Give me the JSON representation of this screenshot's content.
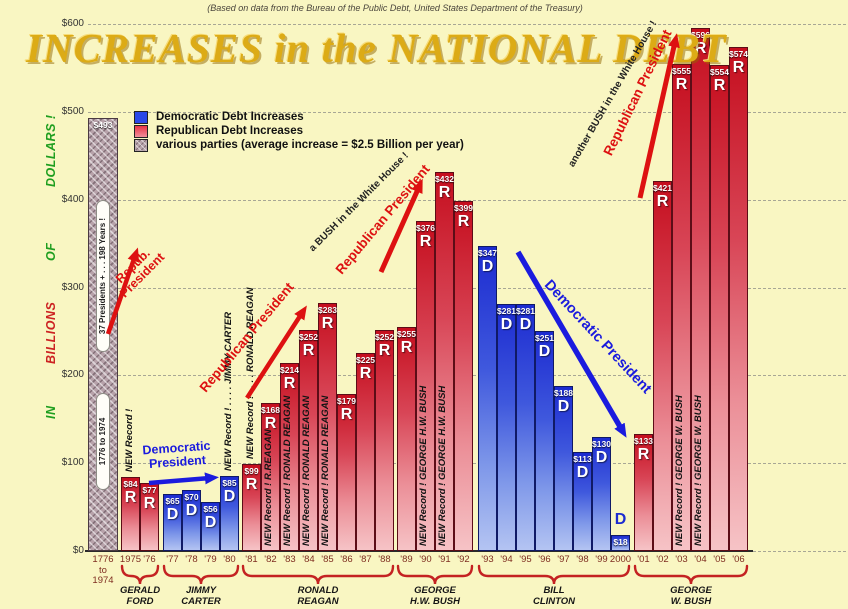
{
  "page": {
    "subtitle": "(Based on data from the Bureau of the Public Debt, United States Department of the Treasury)",
    "title": "INCREASES in the NATIONAL DEBT"
  },
  "legend": {
    "items": [
      {
        "label": "Democratic Debt Increases",
        "swatch_color": "#2a48e8"
      },
      {
        "label": "Republican Debt Increases",
        "swatch_color": "#e83346"
      },
      {
        "label": "various parties (average increase = $2.5 Billion per year)",
        "swatch_color": "hatch"
      }
    ]
  },
  "annotations": {
    "ford": {
      "line1": "Repub.",
      "line2": "President",
      "color": "#dd1111"
    },
    "carter": {
      "line1": "Democratic",
      "line2": "President",
      "color": "#1b1bde"
    },
    "reagan": {
      "text": "Republican President",
      "color": "#dd1111"
    },
    "bush41": {
      "black": "a BUSH in the White House !",
      "red": "Republican President"
    },
    "bush43": {
      "black": "another BUSH in the White House !",
      "red": "Republican President"
    },
    "clinton": {
      "text": "Democratic President",
      "color": "#1b1bde"
    }
  },
  "chart_data": {
    "type": "bar",
    "title": "INCREASES in the NATIONAL DEBT",
    "subtitle": "(Based on data from the Bureau of the Public Debt, United States Department of the Treasury)",
    "ylabel": "IN BILLIONS OF DOLLARS !",
    "unit": "billions of US dollars",
    "ylim": [
      0,
      600
    ],
    "grid": "horizontal dashed",
    "yticks": [
      {
        "label": "$600",
        "value": 600
      },
      {
        "label": "$500",
        "value": 500
      },
      {
        "label": "$400",
        "value": 400
      },
      {
        "label": "$300",
        "value": 300
      },
      {
        "label": "$200",
        "value": 200
      },
      {
        "label": "$100",
        "value": 100
      },
      {
        "label": "$0",
        "value": 0
      }
    ],
    "ylabel_words": [
      {
        "text": "DOLLARS !",
        "color": "#1f9e1f"
      },
      {
        "text": "OF",
        "color": "#1f9e1f"
      },
      {
        "text": "BILLIONS",
        "color": "#cc2222"
      },
      {
        "text": "IN",
        "color": "#1f9e1f"
      }
    ],
    "bars": [
      {
        "tick": "1776-1974",
        "tick_lines": [
          "1776",
          "to",
          "1974"
        ],
        "label": "$493",
        "value": 493,
        "party": "various",
        "pills": [
          "37 Presidents +  . . .  198 Years !",
          "1776  to  1974"
        ]
      },
      {
        "tick": "1975",
        "label": "$84",
        "value": 84,
        "party": "R",
        "letter": "R",
        "gap": 3,
        "record": "NEW Record !",
        "record_pos": "above"
      },
      {
        "tick": "'76",
        "label": "$77",
        "value": 77,
        "party": "R",
        "letter": "R"
      },
      {
        "tick": "'77",
        "label": "$65",
        "value": 65,
        "party": "D",
        "letter": "D",
        "gap": 4
      },
      {
        "tick": "'78",
        "label": "$70",
        "value": 70,
        "party": "D",
        "letter": "D"
      },
      {
        "tick": "'79",
        "label": "$56",
        "value": 56,
        "party": "D",
        "letter": "D"
      },
      {
        "tick": "'80",
        "label": "$85",
        "value": 85,
        "party": "D",
        "letter": "D",
        "record": "NEW Record ! . . . .  JIMMY CARTER",
        "record_pos": "above"
      },
      {
        "tick": "'81",
        "label": "$99",
        "value": 99,
        "party": "R",
        "letter": "R",
        "gap": 3,
        "record": "NEW Record ! . . . .  RONALD REAGAN",
        "record_pos": "above"
      },
      {
        "tick": "'82",
        "label": "$168",
        "value": 168,
        "party": "R",
        "letter": "R",
        "record": "NEW Record ! R.REAGAN",
        "record_pos": "on"
      },
      {
        "tick": "'83",
        "label": "$214",
        "value": 214,
        "party": "R",
        "letter": "R",
        "record": "NEW Record ! RONALD REAGAN",
        "record_pos": "on"
      },
      {
        "tick": "'84",
        "label": "$252",
        "value": 252,
        "party": "R",
        "letter": "R",
        "record": "NEW Record ! RONALD REAGAN",
        "record_pos": "on"
      },
      {
        "tick": "'85",
        "label": "$283",
        "value": 283,
        "party": "R",
        "letter": "R",
        "record": "NEW Record ! RONALD REAGAN",
        "record_pos": "on"
      },
      {
        "tick": "'86",
        "label": "$179",
        "value": 179,
        "party": "R",
        "letter": "R"
      },
      {
        "tick": "'87",
        "label": "$225",
        "value": 225,
        "party": "R",
        "letter": "R"
      },
      {
        "tick": "'88",
        "label": "$252",
        "value": 252,
        "party": "R",
        "letter": "R"
      },
      {
        "tick": "'89",
        "label": "$255",
        "value": 255,
        "party": "R",
        "letter": "R",
        "gap": 3
      },
      {
        "tick": "'90",
        "label": "$376",
        "value": 376,
        "party": "R",
        "letter": "R",
        "record": "NEW Record ! GEORGE H.W. BUSH",
        "record_pos": "on"
      },
      {
        "tick": "'91",
        "label": "$432",
        "value": 432,
        "party": "R",
        "letter": "R",
        "record": "NEW Record ! GEORGE H.W. BUSH",
        "record_pos": "on"
      },
      {
        "tick": "'92",
        "label": "$399",
        "value": 399,
        "party": "R",
        "letter": "R"
      },
      {
        "tick": "'93",
        "label": "$347",
        "value": 347,
        "party": "D",
        "letter": "D",
        "gap": 5
      },
      {
        "tick": "'94",
        "label": "$281",
        "value": 281,
        "party": "D",
        "letter": "D"
      },
      {
        "tick": "'95",
        "label": "$281",
        "value": 281,
        "party": "D",
        "letter": "D"
      },
      {
        "tick": "'96",
        "label": "$251",
        "value": 251,
        "party": "D",
        "letter": "D"
      },
      {
        "tick": "'97",
        "label": "$188",
        "value": 188,
        "party": "D",
        "letter": "D"
      },
      {
        "tick": "'98",
        "label": "$113",
        "value": 113,
        "party": "D",
        "letter": "D"
      },
      {
        "tick": "'99",
        "label": "$130",
        "value": 130,
        "party": "D",
        "letter": "D"
      },
      {
        "tick": "2000",
        "label": "$18",
        "value": 18,
        "party": "D",
        "letter": "D",
        "letter_outside": true
      },
      {
        "tick": "'01",
        "label": "$133",
        "value": 133,
        "party": "R",
        "letter": "R",
        "gap": 4
      },
      {
        "tick": "'02",
        "label": "$421",
        "value": 421,
        "party": "R",
        "letter": "R"
      },
      {
        "tick": "'03",
        "label": "$555",
        "value": 555,
        "party": "R",
        "letter": "R",
        "record": "NEW Record ! GEORGE W. BUSH",
        "record_pos": "on"
      },
      {
        "tick": "'04",
        "label": "$596",
        "value": 596,
        "party": "R",
        "letter": "R",
        "record": "NEW Record ! GEORGE W. BUSH",
        "record_pos": "on"
      },
      {
        "tick": "'05",
        "label": "$554",
        "value": 554,
        "party": "R",
        "letter": "R"
      },
      {
        "tick": "'06",
        "label": "$574",
        "value": 574,
        "party": "R",
        "letter": "R"
      }
    ],
    "groups": [
      {
        "from": 1,
        "to": 2,
        "name": "GERALD FORD",
        "lines": [
          "GERALD",
          "FORD"
        ]
      },
      {
        "from": 3,
        "to": 6,
        "name": "JIMMY CARTER",
        "lines": [
          "JIMMY",
          "CARTER"
        ]
      },
      {
        "from": 7,
        "to": 14,
        "name": "RONALD REAGAN",
        "lines": [
          "RONALD",
          "REAGAN"
        ]
      },
      {
        "from": 15,
        "to": 18,
        "name": "GEORGE H.W. BUSH",
        "lines": [
          "GEORGE",
          "H.W. BUSH"
        ]
      },
      {
        "from": 19,
        "to": 26,
        "name": "BILL CLINTON",
        "lines": [
          "BILL",
          "CLINTON"
        ]
      },
      {
        "from": 27,
        "to": 32,
        "name": "GEORGE W. BUSH",
        "lines": [
          "GEORGE",
          "W. BUSH"
        ]
      }
    ],
    "colors": {
      "democratic_bar": "#1c2bd0",
      "republican_bar": "#c50e1e",
      "various_bar_hatch": "#b7a2aa",
      "background": "#f9f6c2",
      "brace": "#c42222",
      "year_tick_text": "#7e2d20"
    }
  }
}
